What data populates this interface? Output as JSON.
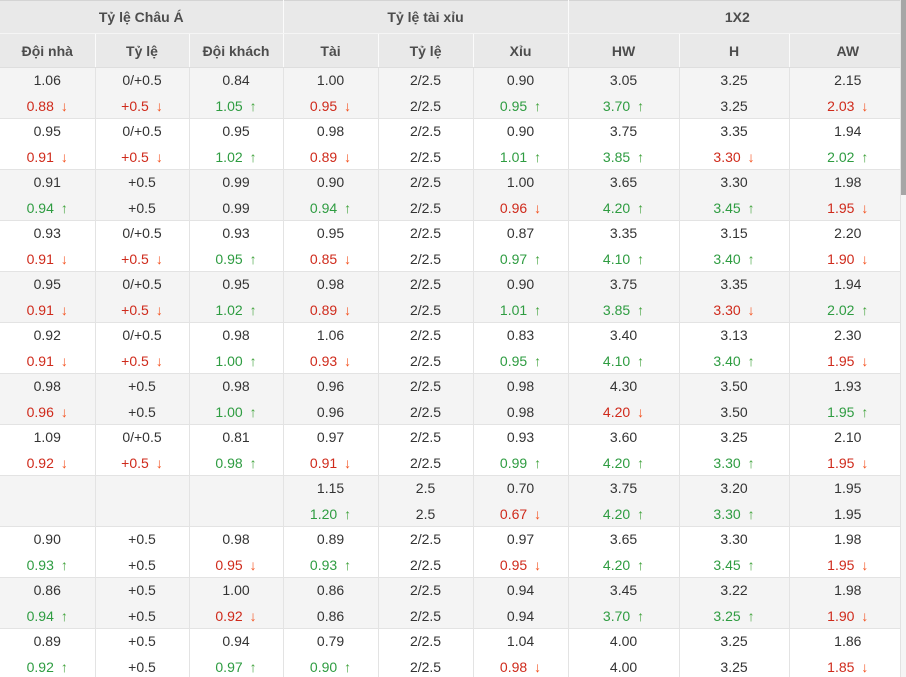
{
  "header": {
    "groups": [
      {
        "label": "Tỷ lệ Châu Á"
      },
      {
        "label": "Tỷ lệ tài xỉu"
      },
      {
        "label": "1X2"
      }
    ],
    "columns": [
      "Đội nhà",
      "Tỷ lệ",
      "Đội khách",
      "Tài",
      "Tỷ lệ",
      "Xỉu",
      "HW",
      "H",
      "AW"
    ]
  },
  "icons": {
    "up": "↑",
    "down": "↓"
  },
  "colors": {
    "up_text": "#2e9c41",
    "down_text": "#cf2a1b",
    "up_arrow": "#41a33c",
    "down_arrow": "#f4511e",
    "header_bg": "#e9e9e9",
    "shaded_row_bg": "#f4f4f4",
    "border": "#e3e3e3"
  },
  "odds_rows": [
    {
      "bg": "shaded",
      "cells": [
        [
          "1.06",
          "0.88",
          "down"
        ],
        [
          "0/+0.5",
          "+0.5",
          "down"
        ],
        [
          "0.84",
          "1.05",
          "up"
        ],
        [
          "1.00",
          "0.95",
          "down"
        ],
        [
          "2/2.5",
          "2/2.5",
          ""
        ],
        [
          "0.90",
          "0.95",
          "up"
        ],
        [
          "3.05",
          "3.70",
          "up"
        ],
        [
          "3.25",
          "3.25",
          ""
        ],
        [
          "2.15",
          "2.03",
          "down"
        ]
      ]
    },
    {
      "bg": "plain",
      "cells": [
        [
          "0.95",
          "0.91",
          "down"
        ],
        [
          "0/+0.5",
          "+0.5",
          "down"
        ],
        [
          "0.95",
          "1.02",
          "up"
        ],
        [
          "0.98",
          "0.89",
          "down"
        ],
        [
          "2/2.5",
          "2/2.5",
          ""
        ],
        [
          "0.90",
          "1.01",
          "up"
        ],
        [
          "3.75",
          "3.85",
          "up"
        ],
        [
          "3.35",
          "3.30",
          "down"
        ],
        [
          "1.94",
          "2.02",
          "up"
        ]
      ]
    },
    {
      "bg": "shaded",
      "cells": [
        [
          "0.91",
          "0.94",
          "up"
        ],
        [
          "+0.5",
          "+0.5",
          ""
        ],
        [
          "0.99",
          "0.99",
          ""
        ],
        [
          "0.90",
          "0.94",
          "up"
        ],
        [
          "2/2.5",
          "2/2.5",
          ""
        ],
        [
          "1.00",
          "0.96",
          "down"
        ],
        [
          "3.65",
          "4.20",
          "up"
        ],
        [
          "3.30",
          "3.45",
          "up"
        ],
        [
          "1.98",
          "1.95",
          "down"
        ]
      ]
    },
    {
      "bg": "plain",
      "cells": [
        [
          "0.93",
          "0.91",
          "down"
        ],
        [
          "0/+0.5",
          "+0.5",
          "down"
        ],
        [
          "0.93",
          "0.95",
          "up"
        ],
        [
          "0.95",
          "0.85",
          "down"
        ],
        [
          "2/2.5",
          "2/2.5",
          ""
        ],
        [
          "0.87",
          "0.97",
          "up"
        ],
        [
          "3.35",
          "4.10",
          "up"
        ],
        [
          "3.15",
          "3.40",
          "up"
        ],
        [
          "2.20",
          "1.90",
          "down"
        ]
      ]
    },
    {
      "bg": "shaded",
      "cells": [
        [
          "0.95",
          "0.91",
          "down"
        ],
        [
          "0/+0.5",
          "+0.5",
          "down"
        ],
        [
          "0.95",
          "1.02",
          "up"
        ],
        [
          "0.98",
          "0.89",
          "down"
        ],
        [
          "2/2.5",
          "2/2.5",
          ""
        ],
        [
          "0.90",
          "1.01",
          "up"
        ],
        [
          "3.75",
          "3.85",
          "up"
        ],
        [
          "3.35",
          "3.30",
          "down"
        ],
        [
          "1.94",
          "2.02",
          "up"
        ]
      ]
    },
    {
      "bg": "plain",
      "cells": [
        [
          "0.92",
          "0.91",
          "down"
        ],
        [
          "0/+0.5",
          "+0.5",
          "down"
        ],
        [
          "0.98",
          "1.00",
          "up"
        ],
        [
          "1.06",
          "0.93",
          "down"
        ],
        [
          "2/2.5",
          "2/2.5",
          ""
        ],
        [
          "0.83",
          "0.95",
          "up"
        ],
        [
          "3.40",
          "4.10",
          "up"
        ],
        [
          "3.13",
          "3.40",
          "up"
        ],
        [
          "2.30",
          "1.95",
          "down"
        ]
      ]
    },
    {
      "bg": "shaded",
      "cells": [
        [
          "0.98",
          "0.96",
          "down"
        ],
        [
          "+0.5",
          "+0.5",
          ""
        ],
        [
          "0.98",
          "1.00",
          "up"
        ],
        [
          "0.96",
          "0.96",
          ""
        ],
        [
          "2/2.5",
          "2/2.5",
          ""
        ],
        [
          "0.98",
          "0.98",
          ""
        ],
        [
          "4.30",
          "4.20",
          "down"
        ],
        [
          "3.50",
          "3.50",
          ""
        ],
        [
          "1.93",
          "1.95",
          "up"
        ]
      ]
    },
    {
      "bg": "plain",
      "cells": [
        [
          "1.09",
          "0.92",
          "down"
        ],
        [
          "0/+0.5",
          "+0.5",
          "down"
        ],
        [
          "0.81",
          "0.98",
          "up"
        ],
        [
          "0.97",
          "0.91",
          "down"
        ],
        [
          "2/2.5",
          "2/2.5",
          ""
        ],
        [
          "0.93",
          "0.99",
          "up"
        ],
        [
          "3.60",
          "4.20",
          "up"
        ],
        [
          "3.25",
          "3.30",
          "up"
        ],
        [
          "2.10",
          "1.95",
          "down"
        ]
      ]
    },
    {
      "bg": "shaded",
      "cells": [
        [
          "",
          "",
          ""
        ],
        [
          "",
          "",
          ""
        ],
        [
          "",
          "",
          ""
        ],
        [
          "1.15",
          "1.20",
          "up"
        ],
        [
          "2.5",
          "2.5",
          ""
        ],
        [
          "0.70",
          "0.67",
          "down"
        ],
        [
          "3.75",
          "4.20",
          "up"
        ],
        [
          "3.20",
          "3.30",
          "up"
        ],
        [
          "1.95",
          "1.95",
          ""
        ]
      ]
    },
    {
      "bg": "plain",
      "cells": [
        [
          "0.90",
          "0.93",
          "up"
        ],
        [
          "+0.5",
          "+0.5",
          ""
        ],
        [
          "0.98",
          "0.95",
          "down"
        ],
        [
          "0.89",
          "0.93",
          "up"
        ],
        [
          "2/2.5",
          "2/2.5",
          ""
        ],
        [
          "0.97",
          "0.95",
          "down"
        ],
        [
          "3.65",
          "4.20",
          "up"
        ],
        [
          "3.30",
          "3.45",
          "up"
        ],
        [
          "1.98",
          "1.95",
          "down"
        ]
      ]
    },
    {
      "bg": "shaded",
      "cells": [
        [
          "0.86",
          "0.94",
          "up"
        ],
        [
          "+0.5",
          "+0.5",
          ""
        ],
        [
          "1.00",
          "0.92",
          "down"
        ],
        [
          "0.86",
          "0.86",
          ""
        ],
        [
          "2/2.5",
          "2/2.5",
          ""
        ],
        [
          "0.94",
          "0.94",
          ""
        ],
        [
          "3.45",
          "3.70",
          "up"
        ],
        [
          "3.22",
          "3.25",
          "up"
        ],
        [
          "1.98",
          "1.90",
          "down"
        ]
      ]
    },
    {
      "bg": "plain",
      "cells": [
        [
          "0.89",
          "0.92",
          "up"
        ],
        [
          "+0.5",
          "+0.5",
          ""
        ],
        [
          "0.94",
          "0.97",
          "up"
        ],
        [
          "0.79",
          "0.90",
          "up"
        ],
        [
          "2/2.5",
          "2/2.5",
          ""
        ],
        [
          "1.04",
          "0.98",
          "down"
        ],
        [
          "4.00",
          "4.00",
          ""
        ],
        [
          "3.25",
          "3.25",
          ""
        ],
        [
          "1.86",
          "1.85",
          "down"
        ]
      ]
    }
  ]
}
